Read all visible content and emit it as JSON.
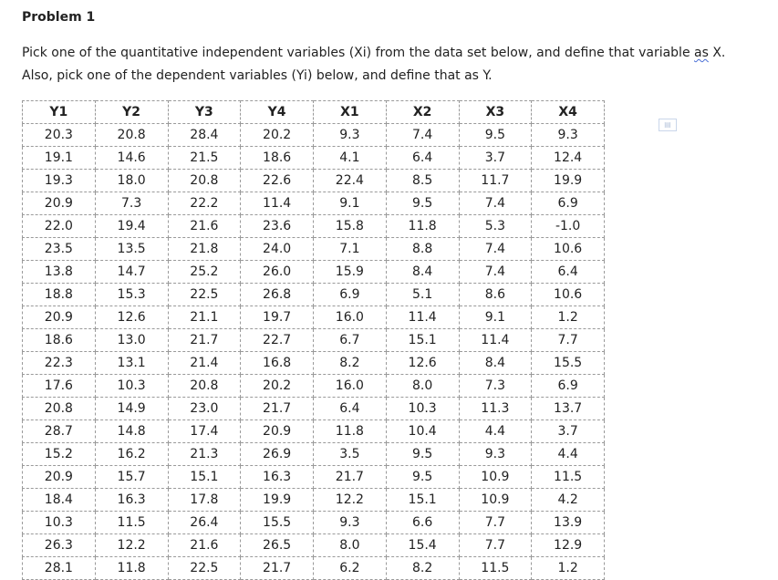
{
  "heading": "Problem 1",
  "intro": {
    "part1": "Pick one of the quantitative independent variables (Xi) from the data set below, and define that variable ",
    "squiggle_word": "as",
    "part2": " X.  Also, pick one of the dependent variables (Yi) below, and define that as Y."
  },
  "table": {
    "headers": [
      "Y1",
      "Y2",
      "Y3",
      "Y4",
      "X1",
      "X2",
      "X3",
      "X4"
    ],
    "rows": [
      [
        "20.3",
        "20.8",
        "28.4",
        "20.2",
        "9.3",
        "7.4",
        "9.5",
        "9.3"
      ],
      [
        "19.1",
        "14.6",
        "21.5",
        "18.6",
        "4.1",
        "6.4",
        "3.7",
        "12.4"
      ],
      [
        "19.3",
        "18.0",
        "20.8",
        "22.6",
        "22.4",
        "8.5",
        "11.7",
        "19.9"
      ],
      [
        "20.9",
        "7.3",
        "22.2",
        "11.4",
        "9.1",
        "9.5",
        "7.4",
        "6.9"
      ],
      [
        "22.0",
        "19.4",
        "21.6",
        "23.6",
        "15.8",
        "11.8",
        "5.3",
        "-1.0"
      ],
      [
        "23.5",
        "13.5",
        "21.8",
        "24.0",
        "7.1",
        "8.8",
        "7.4",
        "10.6"
      ],
      [
        "13.8",
        "14.7",
        "25.2",
        "26.0",
        "15.9",
        "8.4",
        "7.4",
        "6.4"
      ],
      [
        "18.8",
        "15.3",
        "22.5",
        "26.8",
        "6.9",
        "5.1",
        "8.6",
        "10.6"
      ],
      [
        "20.9",
        "12.6",
        "21.1",
        "19.7",
        "16.0",
        "11.4",
        "9.1",
        "1.2"
      ],
      [
        "18.6",
        "13.0",
        "21.7",
        "22.7",
        "6.7",
        "15.1",
        "11.4",
        "7.7"
      ],
      [
        "22.3",
        "13.1",
        "21.4",
        "16.8",
        "8.2",
        "12.6",
        "8.4",
        "15.5"
      ],
      [
        "17.6",
        "10.3",
        "20.8",
        "20.2",
        "16.0",
        "8.0",
        "7.3",
        "6.9"
      ],
      [
        "20.8",
        "14.9",
        "23.0",
        "21.7",
        "6.4",
        "10.3",
        "11.3",
        "13.7"
      ],
      [
        "28.7",
        "14.8",
        "17.4",
        "20.9",
        "11.8",
        "10.4",
        "4.4",
        "3.7"
      ],
      [
        "15.2",
        "16.2",
        "21.3",
        "26.9",
        "3.5",
        "9.5",
        "9.3",
        "4.4"
      ],
      [
        "20.9",
        "15.7",
        "15.1",
        "16.3",
        "21.7",
        "9.5",
        "10.9",
        "11.5"
      ],
      [
        "18.4",
        "16.3",
        "17.8",
        "19.9",
        "12.2",
        "15.1",
        "10.9",
        "4.2"
      ],
      [
        "10.3",
        "11.5",
        "26.4",
        "15.5",
        "9.3",
        "6.6",
        "7.7",
        "13.9"
      ],
      [
        "26.3",
        "12.2",
        "21.6",
        "26.5",
        "8.0",
        "15.4",
        "7.7",
        "12.9"
      ],
      [
        "28.1",
        "11.8",
        "22.5",
        "21.7",
        "6.2",
        "8.2",
        "11.5",
        "1.2"
      ]
    ]
  },
  "side_icon": "table-options-icon"
}
